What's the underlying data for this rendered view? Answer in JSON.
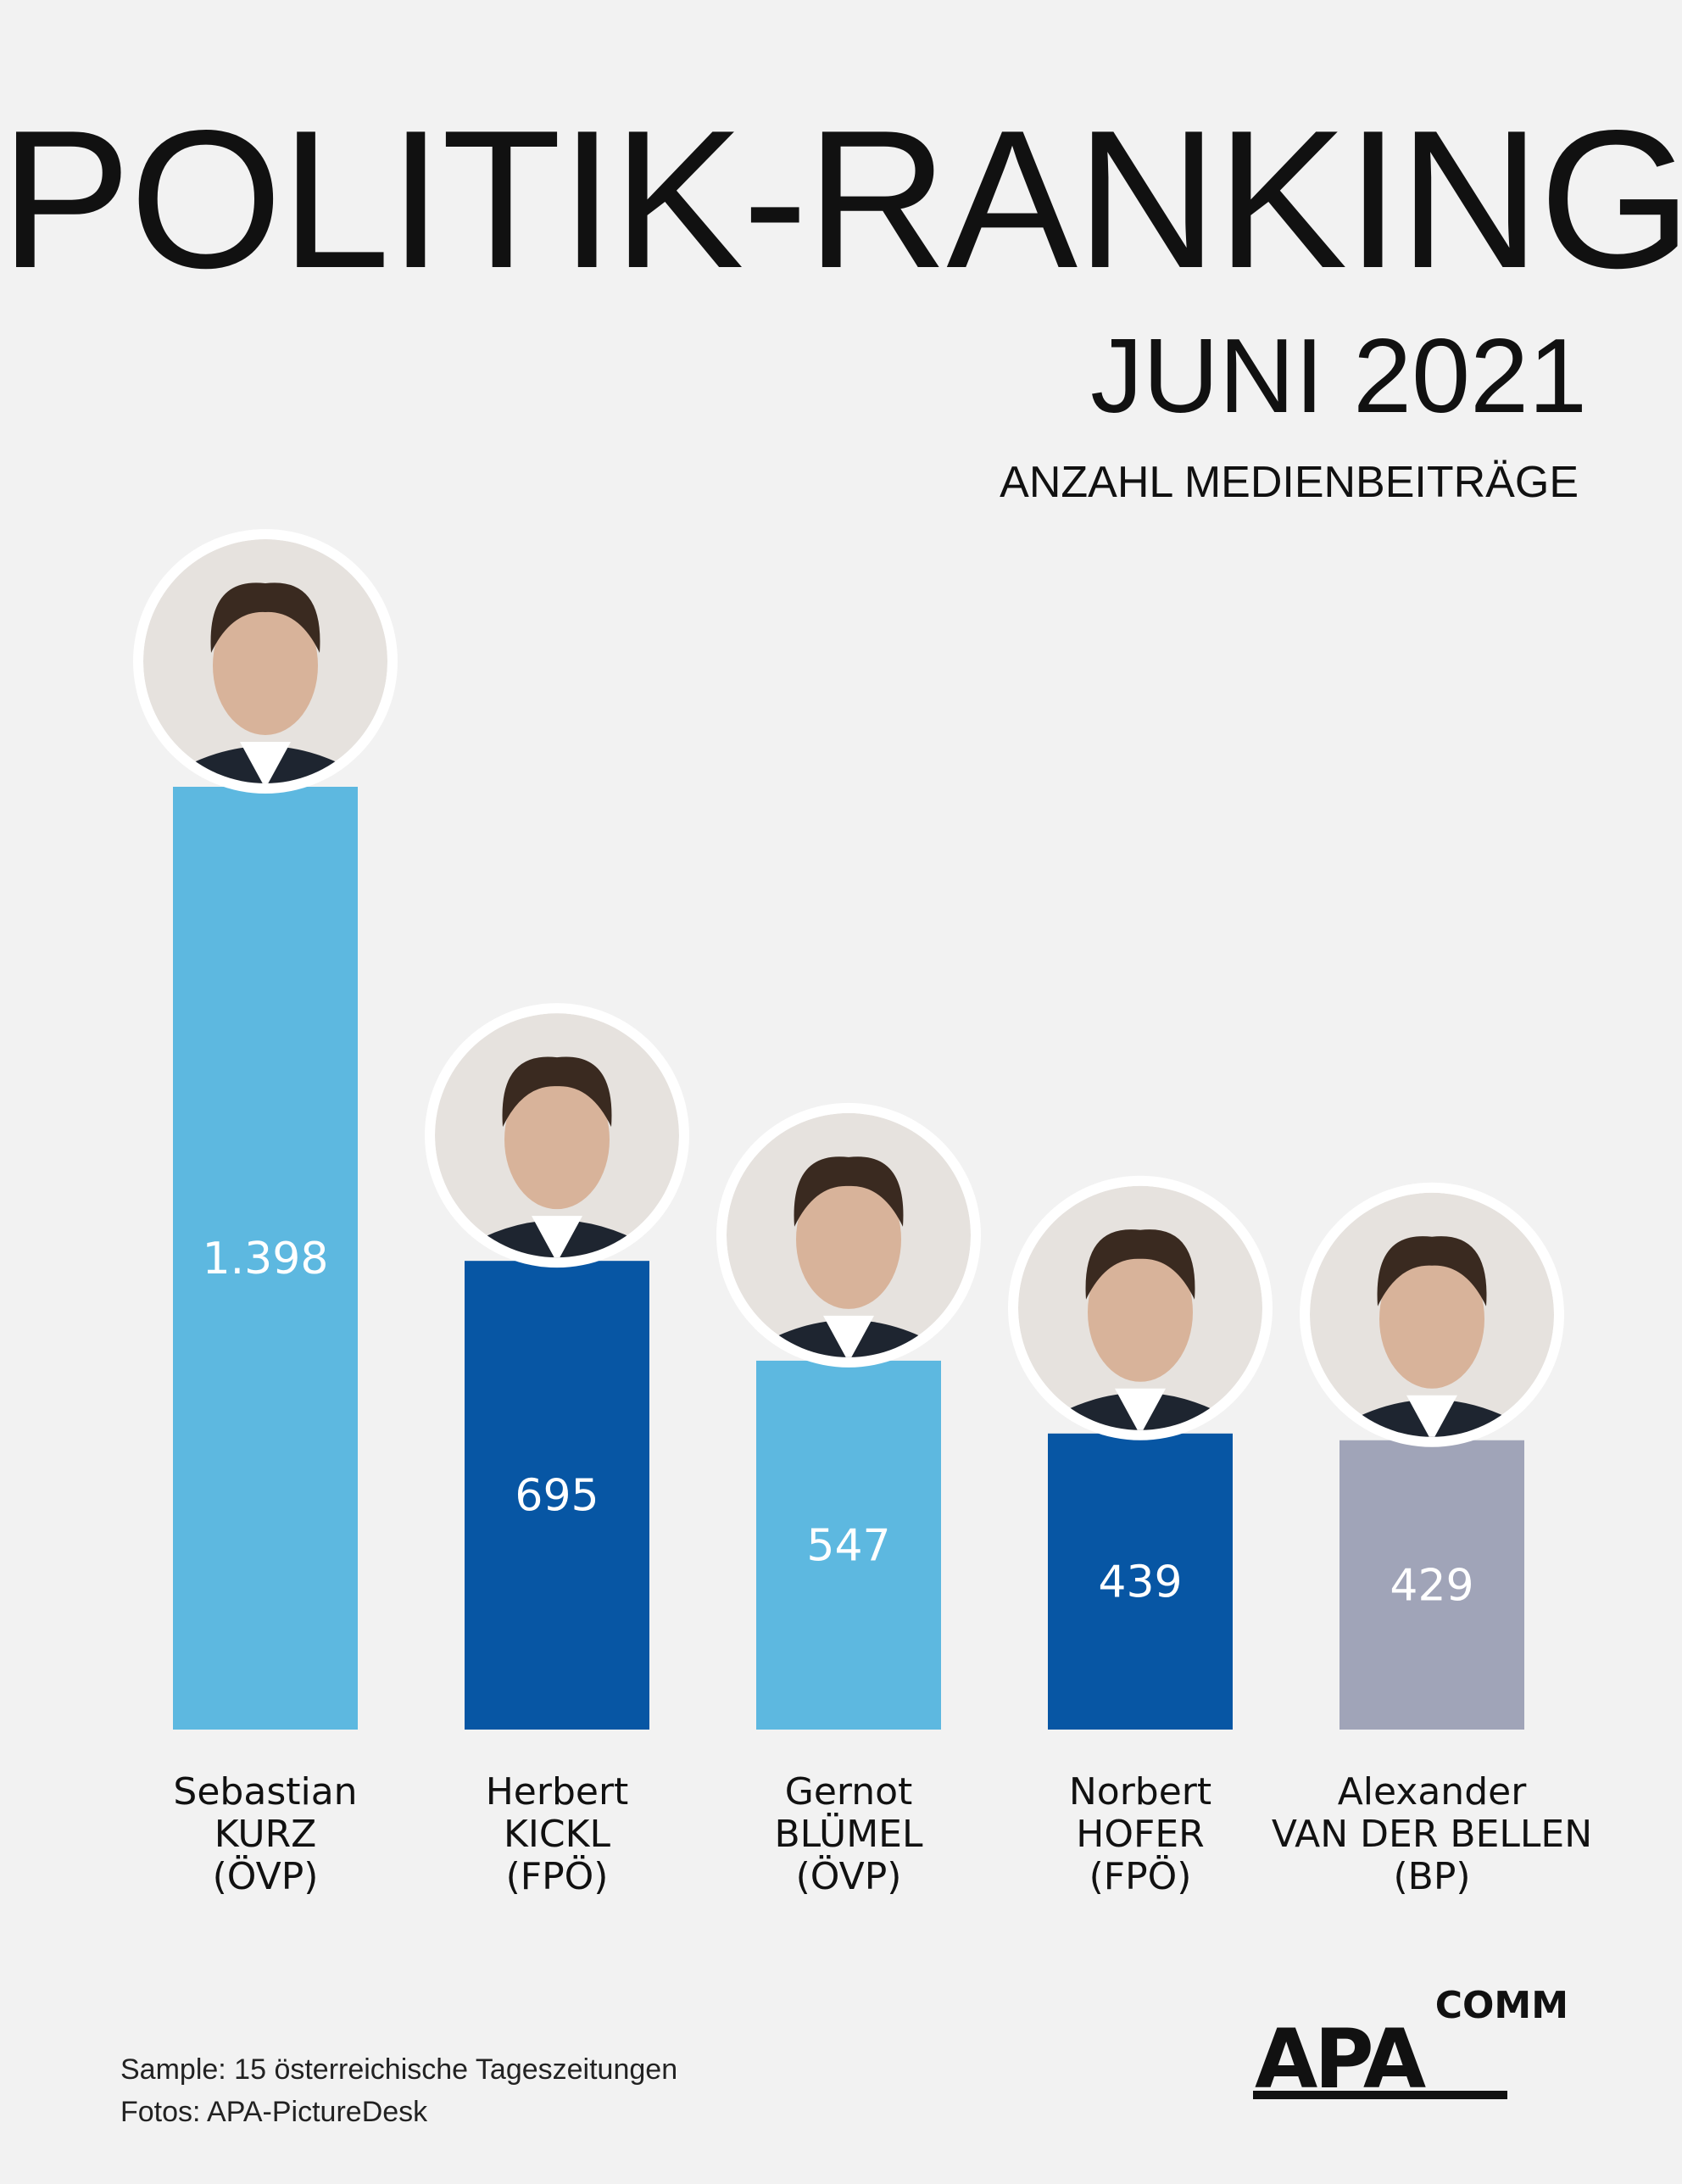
{
  "header": {
    "title": "POLITIK-RANKING",
    "subtitle": "JUNI 2021",
    "metric": "ANZAHL MEDIENBEITRÄGE"
  },
  "chart_data": {
    "type": "bar",
    "title": "POLITIK-RANKING",
    "subtitle": "JUNI 2021",
    "ylabel": "ANZAHL MEDIENBEITRÄGE",
    "xlabel": "",
    "ylim": [
      0,
      1398
    ],
    "grid": false,
    "categories": [
      [
        "Sebastian",
        "KURZ",
        "(ÖVP)"
      ],
      [
        "Herbert",
        "KICKL",
        "(FPÖ)"
      ],
      [
        "Gernot",
        "BLÜMEL",
        "(ÖVP)"
      ],
      [
        "Norbert",
        "HOFER",
        "(FPÖ)"
      ],
      [
        "Alexander",
        "VAN DER BELLEN",
        "(BP)"
      ]
    ],
    "values": [
      1398,
      695,
      547,
      439,
      429
    ],
    "value_labels": [
      "1.398",
      "695",
      "547",
      "439",
      "429"
    ],
    "colors": [
      "#5db8e0",
      "#0756a4",
      "#5db8e0",
      "#0756a4",
      "#a0a4b8"
    ]
  },
  "footer": {
    "sample": "Sample: 15 österreichische Tageszeitungen",
    "photos": "Fotos: APA-PictureDesk"
  },
  "logo": {
    "main": "APA",
    "sub": "COMM"
  }
}
